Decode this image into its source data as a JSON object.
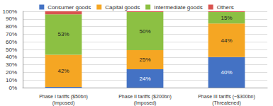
{
  "chart_data": {
    "type": "bar",
    "stacked": true,
    "data_labels": true,
    "grid": true,
    "legend": "top",
    "categories": [
      "Phase I tariffs ($50bn)\n(Imposed)",
      "Phase II tariffs ($200bn)\n(Imposed)",
      "Phase III tariffs (~$300bn)\n(Threatened)"
    ],
    "series": [
      {
        "name": "Consumer goods",
        "color": "#4472c4",
        "values": [
          1,
          24,
          40
        ],
        "value_labels": [
          null,
          "24%",
          "40%"
        ]
      },
      {
        "name": "Capital goods",
        "color": "#f5a623",
        "values": [
          42,
          25,
          44
        ],
        "value_labels": [
          "42%",
          "25%",
          "44%"
        ]
      },
      {
        "name": "Intermediate goods",
        "color": "#8cc043",
        "values": [
          53,
          50,
          15
        ],
        "value_labels": [
          "53%",
          "50%",
          "15%"
        ]
      },
      {
        "name": "Others",
        "color": "#d9534f",
        "values": [
          4,
          1,
          1
        ],
        "value_labels": [
          null,
          null,
          null
        ]
      }
    ],
    "ylim": [
      0,
      100
    ],
    "yticks": [
      {
        "value": 0,
        "label": "0%"
      },
      {
        "value": 10,
        "label": "10%"
      },
      {
        "value": 20,
        "label": "20%"
      },
      {
        "value": 30,
        "label": "30%"
      },
      {
        "value": 40,
        "label": "40%"
      },
      {
        "value": 50,
        "label": "50%"
      },
      {
        "value": 60,
        "label": "60%"
      },
      {
        "value": 70,
        "label": "70%"
      },
      {
        "value": 80,
        "label": "80%"
      },
      {
        "value": 90,
        "label": "90%"
      },
      {
        "value": 100,
        "label": "100%"
      }
    ]
  }
}
